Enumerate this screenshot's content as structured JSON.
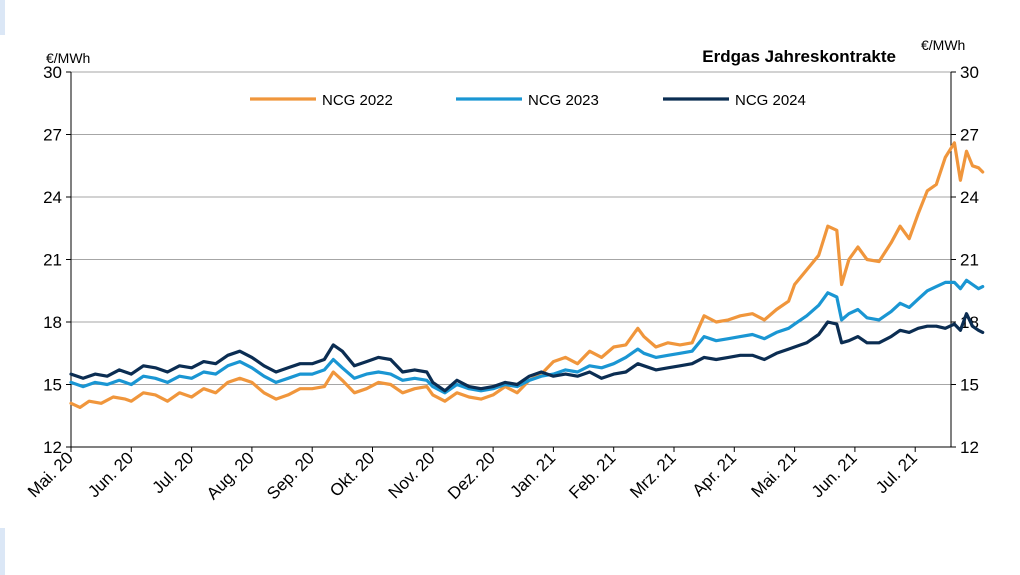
{
  "chart_data": {
    "type": "line",
    "title": "Erdgas Jahreskontrakte",
    "ylabel_left": "€/MWh",
    "ylabel_right": "€/MWh",
    "ylim": [
      12,
      30
    ],
    "yticks": [
      12,
      15,
      18,
      21,
      24,
      27,
      30
    ],
    "grid": true,
    "legend_position": "top-center",
    "x_tick_labels": [
      "Mai. 20",
      "Jun. 20",
      "Jul. 20",
      "Aug. 20",
      "Sep. 20",
      "Okt. 20",
      "Nov. 20",
      "Dez. 20",
      "Jan. 21",
      "Feb. 21",
      "Mrz. 21",
      "Apr. 21",
      "Mai. 21",
      "Jun. 21",
      "Jul. 21"
    ],
    "x_unit": "month index (0 = Mai. 20)",
    "series": [
      {
        "name": "NCG 2022",
        "color": "#f0963c",
        "points": [
          [
            0,
            14.1
          ],
          [
            0.15,
            13.9
          ],
          [
            0.3,
            14.2
          ],
          [
            0.5,
            14.1
          ],
          [
            0.7,
            14.4
          ],
          [
            0.9,
            14.3
          ],
          [
            1.0,
            14.2
          ],
          [
            1.2,
            14.6
          ],
          [
            1.4,
            14.5
          ],
          [
            1.6,
            14.2
          ],
          [
            1.8,
            14.6
          ],
          [
            2.0,
            14.4
          ],
          [
            2.2,
            14.8
          ],
          [
            2.4,
            14.6
          ],
          [
            2.6,
            15.1
          ],
          [
            2.8,
            15.3
          ],
          [
            3.0,
            15.1
          ],
          [
            3.2,
            14.6
          ],
          [
            3.4,
            14.3
          ],
          [
            3.6,
            14.5
          ],
          [
            3.8,
            14.8
          ],
          [
            4.0,
            14.8
          ],
          [
            4.2,
            14.9
          ],
          [
            4.35,
            15.6
          ],
          [
            4.5,
            15.2
          ],
          [
            4.7,
            14.6
          ],
          [
            4.9,
            14.8
          ],
          [
            5.1,
            15.1
          ],
          [
            5.3,
            15.0
          ],
          [
            5.5,
            14.6
          ],
          [
            5.7,
            14.8
          ],
          [
            5.9,
            14.9
          ],
          [
            6.0,
            14.5
          ],
          [
            6.2,
            14.2
          ],
          [
            6.4,
            14.6
          ],
          [
            6.6,
            14.4
          ],
          [
            6.8,
            14.3
          ],
          [
            7.0,
            14.5
          ],
          [
            7.2,
            14.9
          ],
          [
            7.4,
            14.6
          ],
          [
            7.6,
            15.2
          ],
          [
            7.8,
            15.5
          ],
          [
            8.0,
            16.1
          ],
          [
            8.2,
            16.3
          ],
          [
            8.4,
            16.0
          ],
          [
            8.6,
            16.6
          ],
          [
            8.8,
            16.3
          ],
          [
            9.0,
            16.8
          ],
          [
            9.2,
            16.9
          ],
          [
            9.4,
            17.7
          ],
          [
            9.5,
            17.3
          ],
          [
            9.7,
            16.8
          ],
          [
            9.9,
            17.0
          ],
          [
            10.1,
            16.9
          ],
          [
            10.3,
            17.0
          ],
          [
            10.5,
            18.3
          ],
          [
            10.7,
            18.0
          ],
          [
            10.9,
            18.1
          ],
          [
            11.1,
            18.3
          ],
          [
            11.3,
            18.4
          ],
          [
            11.5,
            18.1
          ],
          [
            11.7,
            18.6
          ],
          [
            11.9,
            19.0
          ],
          [
            12.0,
            19.8
          ],
          [
            12.2,
            20.5
          ],
          [
            12.4,
            21.2
          ],
          [
            12.55,
            22.6
          ],
          [
            12.7,
            22.4
          ],
          [
            12.78,
            19.8
          ],
          [
            12.9,
            21.0
          ],
          [
            13.05,
            21.6
          ],
          [
            13.2,
            21.0
          ],
          [
            13.4,
            20.9
          ],
          [
            13.6,
            21.8
          ],
          [
            13.75,
            22.6
          ],
          [
            13.9,
            22.0
          ],
          [
            14.05,
            23.2
          ],
          [
            14.2,
            24.3
          ],
          [
            14.35,
            24.6
          ],
          [
            14.5,
            25.9
          ],
          [
            14.65,
            26.6
          ],
          [
            14.75,
            24.8
          ],
          [
            14.85,
            26.2
          ],
          [
            14.95,
            25.5
          ],
          [
            15.05,
            25.4
          ],
          [
            15.12,
            25.2
          ]
        ]
      },
      {
        "name": "NCG 2023",
        "color": "#1a96d3",
        "points": [
          [
            0,
            15.1
          ],
          [
            0.2,
            14.9
          ],
          [
            0.4,
            15.1
          ],
          [
            0.6,
            15.0
          ],
          [
            0.8,
            15.2
          ],
          [
            1.0,
            15.0
          ],
          [
            1.2,
            15.4
          ],
          [
            1.4,
            15.3
          ],
          [
            1.6,
            15.1
          ],
          [
            1.8,
            15.4
          ],
          [
            2.0,
            15.3
          ],
          [
            2.2,
            15.6
          ],
          [
            2.4,
            15.5
          ],
          [
            2.6,
            15.9
          ],
          [
            2.8,
            16.1
          ],
          [
            3.0,
            15.8
          ],
          [
            3.2,
            15.4
          ],
          [
            3.4,
            15.1
          ],
          [
            3.6,
            15.3
          ],
          [
            3.8,
            15.5
          ],
          [
            4.0,
            15.5
          ],
          [
            4.2,
            15.7
          ],
          [
            4.35,
            16.2
          ],
          [
            4.5,
            15.8
          ],
          [
            4.7,
            15.3
          ],
          [
            4.9,
            15.5
          ],
          [
            5.1,
            15.6
          ],
          [
            5.3,
            15.5
          ],
          [
            5.5,
            15.2
          ],
          [
            5.7,
            15.3
          ],
          [
            5.9,
            15.2
          ],
          [
            6.0,
            14.9
          ],
          [
            6.2,
            14.6
          ],
          [
            6.4,
            15.0
          ],
          [
            6.6,
            14.8
          ],
          [
            6.8,
            14.7
          ],
          [
            7.0,
            14.8
          ],
          [
            7.2,
            15.0
          ],
          [
            7.4,
            14.9
          ],
          [
            7.6,
            15.2
          ],
          [
            7.8,
            15.4
          ],
          [
            8.0,
            15.5
          ],
          [
            8.2,
            15.7
          ],
          [
            8.4,
            15.6
          ],
          [
            8.6,
            15.9
          ],
          [
            8.8,
            15.8
          ],
          [
            9.0,
            16.0
          ],
          [
            9.2,
            16.3
          ],
          [
            9.4,
            16.7
          ],
          [
            9.5,
            16.5
          ],
          [
            9.7,
            16.3
          ],
          [
            9.9,
            16.4
          ],
          [
            10.1,
            16.5
          ],
          [
            10.3,
            16.6
          ],
          [
            10.5,
            17.3
          ],
          [
            10.7,
            17.1
          ],
          [
            10.9,
            17.2
          ],
          [
            11.1,
            17.3
          ],
          [
            11.3,
            17.4
          ],
          [
            11.5,
            17.2
          ],
          [
            11.7,
            17.5
          ],
          [
            11.9,
            17.7
          ],
          [
            12.0,
            17.9
          ],
          [
            12.2,
            18.3
          ],
          [
            12.4,
            18.8
          ],
          [
            12.55,
            19.4
          ],
          [
            12.7,
            19.2
          ],
          [
            12.78,
            18.1
          ],
          [
            12.9,
            18.4
          ],
          [
            13.05,
            18.6
          ],
          [
            13.2,
            18.2
          ],
          [
            13.4,
            18.1
          ],
          [
            13.6,
            18.5
          ],
          [
            13.75,
            18.9
          ],
          [
            13.9,
            18.7
          ],
          [
            14.05,
            19.1
          ],
          [
            14.2,
            19.5
          ],
          [
            14.35,
            19.7
          ],
          [
            14.5,
            19.9
          ],
          [
            14.65,
            19.9
          ],
          [
            14.75,
            19.6
          ],
          [
            14.85,
            20.0
          ],
          [
            14.95,
            19.8
          ],
          [
            15.05,
            19.6
          ],
          [
            15.12,
            19.7
          ]
        ]
      },
      {
        "name": "NCG 2024",
        "color": "#0b2d52",
        "points": [
          [
            0,
            15.5
          ],
          [
            0.2,
            15.3
          ],
          [
            0.4,
            15.5
          ],
          [
            0.6,
            15.4
          ],
          [
            0.8,
            15.7
          ],
          [
            1.0,
            15.5
          ],
          [
            1.2,
            15.9
          ],
          [
            1.4,
            15.8
          ],
          [
            1.6,
            15.6
          ],
          [
            1.8,
            15.9
          ],
          [
            2.0,
            15.8
          ],
          [
            2.2,
            16.1
          ],
          [
            2.4,
            16.0
          ],
          [
            2.6,
            16.4
          ],
          [
            2.8,
            16.6
          ],
          [
            3.0,
            16.3
          ],
          [
            3.2,
            15.9
          ],
          [
            3.4,
            15.6
          ],
          [
            3.6,
            15.8
          ],
          [
            3.8,
            16.0
          ],
          [
            4.0,
            16.0
          ],
          [
            4.2,
            16.2
          ],
          [
            4.35,
            16.9
          ],
          [
            4.5,
            16.6
          ],
          [
            4.7,
            15.9
          ],
          [
            4.9,
            16.1
          ],
          [
            5.1,
            16.3
          ],
          [
            5.3,
            16.2
          ],
          [
            5.5,
            15.6
          ],
          [
            5.7,
            15.7
          ],
          [
            5.9,
            15.6
          ],
          [
            6.0,
            15.1
          ],
          [
            6.2,
            14.7
          ],
          [
            6.4,
            15.2
          ],
          [
            6.6,
            14.9
          ],
          [
            6.8,
            14.8
          ],
          [
            7.0,
            14.9
          ],
          [
            7.2,
            15.1
          ],
          [
            7.4,
            15.0
          ],
          [
            7.6,
            15.4
          ],
          [
            7.8,
            15.6
          ],
          [
            8.0,
            15.4
          ],
          [
            8.2,
            15.5
          ],
          [
            8.4,
            15.4
          ],
          [
            8.6,
            15.6
          ],
          [
            8.8,
            15.3
          ],
          [
            9.0,
            15.5
          ],
          [
            9.2,
            15.6
          ],
          [
            9.4,
            16.0
          ],
          [
            9.5,
            15.9
          ],
          [
            9.7,
            15.7
          ],
          [
            9.9,
            15.8
          ],
          [
            10.1,
            15.9
          ],
          [
            10.3,
            16.0
          ],
          [
            10.5,
            16.3
          ],
          [
            10.7,
            16.2
          ],
          [
            10.9,
            16.3
          ],
          [
            11.1,
            16.4
          ],
          [
            11.3,
            16.4
          ],
          [
            11.5,
            16.2
          ],
          [
            11.7,
            16.5
          ],
          [
            11.9,
            16.7
          ],
          [
            12.0,
            16.8
          ],
          [
            12.2,
            17.0
          ],
          [
            12.4,
            17.4
          ],
          [
            12.55,
            18.0
          ],
          [
            12.7,
            17.9
          ],
          [
            12.78,
            17.0
          ],
          [
            12.9,
            17.1
          ],
          [
            13.05,
            17.3
          ],
          [
            13.2,
            17.0
          ],
          [
            13.4,
            17.0
          ],
          [
            13.6,
            17.3
          ],
          [
            13.75,
            17.6
          ],
          [
            13.9,
            17.5
          ],
          [
            14.05,
            17.7
          ],
          [
            14.2,
            17.8
          ],
          [
            14.35,
            17.8
          ],
          [
            14.5,
            17.7
          ],
          [
            14.65,
            17.9
          ],
          [
            14.75,
            17.6
          ],
          [
            14.85,
            18.4
          ],
          [
            14.95,
            17.8
          ],
          [
            15.05,
            17.6
          ],
          [
            15.12,
            17.5
          ]
        ]
      }
    ]
  }
}
